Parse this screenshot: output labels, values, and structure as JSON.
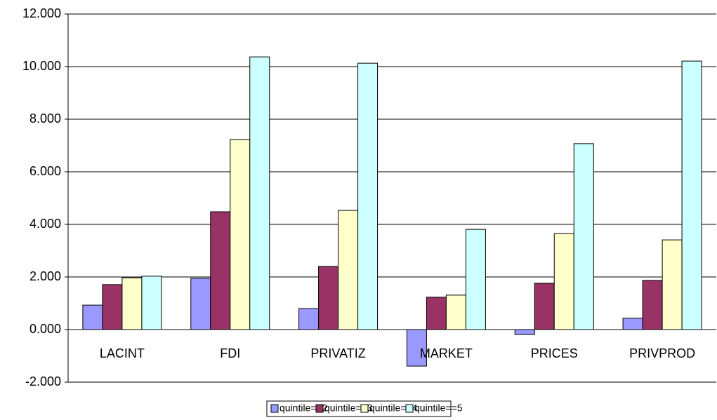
{
  "chart_data": {
    "type": "bar",
    "categories": [
      "LACINT",
      "FDI",
      "PRIVATIZ",
      "MARKET",
      "PRICES",
      "PRIVPROD"
    ],
    "series": [
      {
        "name": "quintile==2",
        "color": "#9999ff",
        "values": [
          0.93,
          1.95,
          0.8,
          -1.39,
          -0.19,
          0.43
        ]
      },
      {
        "name": "quintile==3",
        "color": "#993366",
        "values": [
          1.71,
          4.48,
          2.4,
          1.23,
          1.76,
          1.87
        ]
      },
      {
        "name": "quintile==4",
        "color": "#ffffcc",
        "values": [
          1.97,
          7.23,
          4.53,
          1.31,
          3.65,
          3.41
        ]
      },
      {
        "name": "quintile==5",
        "color": "#ccffff",
        "values": [
          2.03,
          10.37,
          10.13,
          3.81,
          7.07,
          10.21
        ]
      }
    ],
    "ylim": [
      -2,
      12
    ],
    "yticks": [
      {
        "value": -2,
        "label": "-2.000"
      },
      {
        "value": 0,
        "label": "0.000"
      },
      {
        "value": 2,
        "label": "2.000"
      },
      {
        "value": 4,
        "label": "4.000"
      },
      {
        "value": 6,
        "label": "6.000"
      },
      {
        "value": 8,
        "label": "8.000"
      },
      {
        "value": 10,
        "label": "10.000"
      },
      {
        "value": 12,
        "label": "12.000"
      }
    ],
    "grid": true,
    "legend": "bottom"
  }
}
